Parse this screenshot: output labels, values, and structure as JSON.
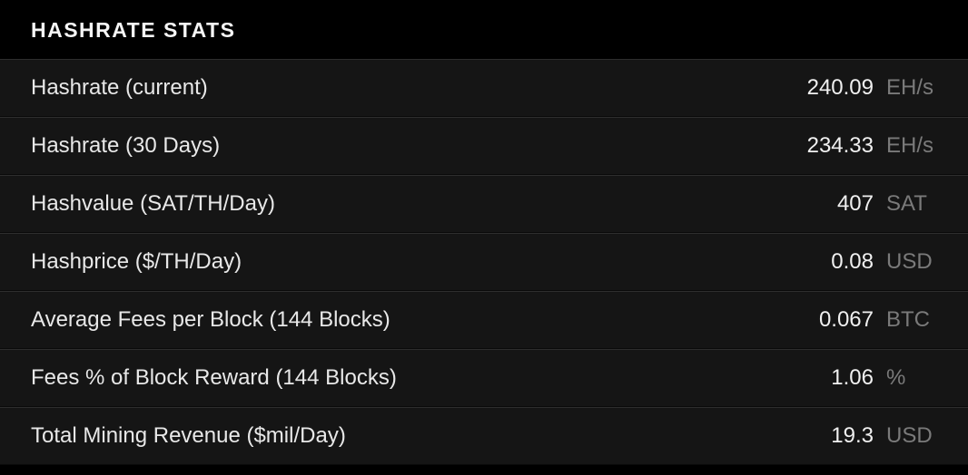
{
  "panel": {
    "title": "HASHRATE STATS",
    "background_color": "#000000",
    "row_background_color": "#151515",
    "border_color": "#2e2e2e",
    "text_color": "#e8e8e8",
    "value_color": "#f0f0f0",
    "unit_color": "#7a7a7a",
    "title_fontsize": 23,
    "row_fontsize": 24,
    "rows": [
      {
        "label": "Hashrate (current)",
        "value": "240.09",
        "unit": "EH/s"
      },
      {
        "label": "Hashrate (30 Days)",
        "value": "234.33",
        "unit": "EH/s"
      },
      {
        "label": "Hashvalue (SAT/TH/Day)",
        "value": "407",
        "unit": "SAT"
      },
      {
        "label": "Hashprice ($/TH/Day)",
        "value": "0.08",
        "unit": "USD"
      },
      {
        "label": "Average Fees per Block (144 Blocks)",
        "value": "0.067",
        "unit": "BTC"
      },
      {
        "label": "Fees % of Block Reward (144 Blocks)",
        "value": "1.06",
        "unit": "%"
      },
      {
        "label": "Total Mining Revenue ($mil/Day)",
        "value": "19.3",
        "unit": "USD"
      }
    ]
  }
}
